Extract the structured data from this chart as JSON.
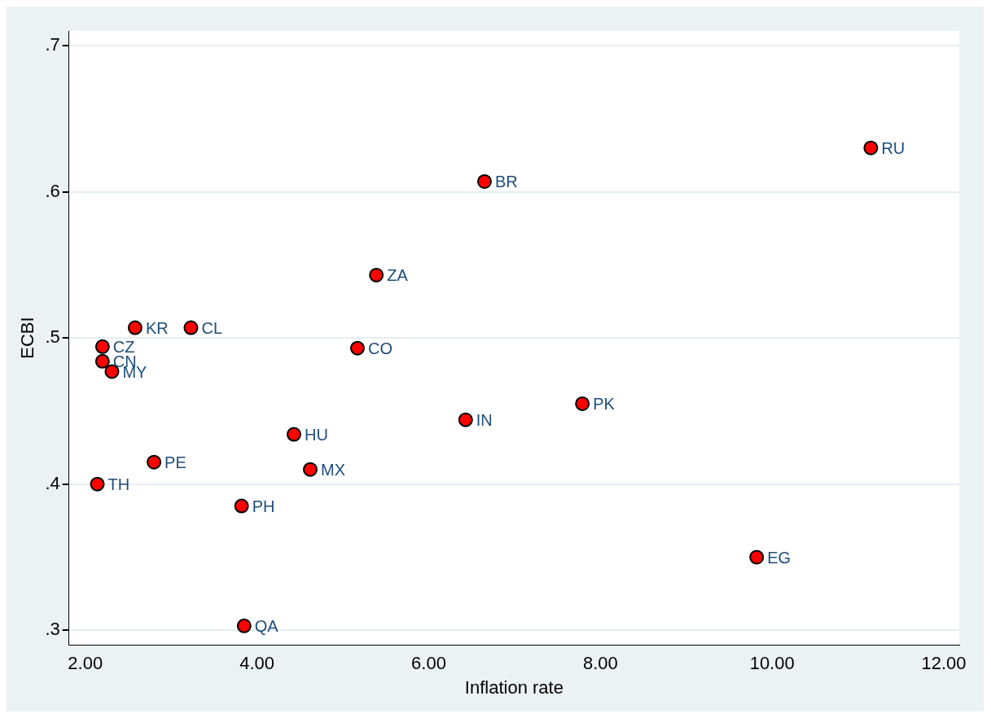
{
  "chart_data": {
    "type": "scatter",
    "xlabel": "Inflation rate",
    "ylabel": "ECBI",
    "series": [
      {
        "color": "#ff0000",
        "x": [
          11.15,
          6.65,
          5.39,
          2.58,
          3.23,
          2.2,
          2.2,
          2.31,
          5.17,
          6.43,
          7.79,
          4.43,
          4.62,
          2.8,
          2.14,
          3.82,
          9.82,
          3.85
        ],
        "values": [
          0.63,
          0.607,
          0.543,
          0.507,
          0.507,
          0.494,
          0.484,
          0.477,
          0.493,
          0.444,
          0.455,
          0.434,
          0.41,
          0.415,
          0.4,
          0.385,
          0.35,
          0.303
        ]
      }
    ],
    "annotations": [
      {
        "text": "RU",
        "x": 11.15,
        "y": 0.63
      },
      {
        "text": "BR",
        "x": 6.65,
        "y": 0.607
      },
      {
        "text": "ZA",
        "x": 5.39,
        "y": 0.543
      },
      {
        "text": "KR",
        "x": 2.58,
        "y": 0.507
      },
      {
        "text": "CL",
        "x": 3.23,
        "y": 0.507
      },
      {
        "text": "CZ",
        "x": 2.2,
        "y": 0.494
      },
      {
        "text": "CN",
        "x": 2.2,
        "y": 0.484
      },
      {
        "text": "MY",
        "x": 2.31,
        "y": 0.477
      },
      {
        "text": "CO",
        "x": 5.17,
        "y": 0.493
      },
      {
        "text": "IN",
        "x": 6.43,
        "y": 0.444
      },
      {
        "text": "PK",
        "x": 7.79,
        "y": 0.455
      },
      {
        "text": "HU",
        "x": 4.43,
        "y": 0.434
      },
      {
        "text": "MX",
        "x": 4.62,
        "y": 0.41
      },
      {
        "text": "PE",
        "x": 2.8,
        "y": 0.415
      },
      {
        "text": "TH",
        "x": 2.14,
        "y": 0.4
      },
      {
        "text": "PH",
        "x": 3.82,
        "y": 0.385
      },
      {
        "text": "EG",
        "x": 9.82,
        "y": 0.35
      },
      {
        "text": "QA",
        "x": 3.85,
        "y": 0.303
      }
    ],
    "xlim": [
      1.81,
      12.18
    ],
    "ylim": [
      0.29,
      0.71
    ],
    "xticks": [
      {
        "value": 2,
        "label": "2.00"
      },
      {
        "value": 4,
        "label": "4.00"
      },
      {
        "value": 6,
        "label": "6.00"
      },
      {
        "value": 8,
        "label": "8.00"
      },
      {
        "value": 10,
        "label": "10.00"
      },
      {
        "value": 12,
        "label": "12.00"
      }
    ],
    "yticks": [
      {
        "value": 0.3,
        "label": ".3"
      },
      {
        "value": 0.4,
        "label": ".4"
      },
      {
        "value": 0.5,
        "label": ".5"
      },
      {
        "value": 0.6,
        "label": ".6"
      },
      {
        "value": 0.7,
        "label": ".7"
      }
    ],
    "grid": "y",
    "marker": "circle",
    "legend": false
  }
}
